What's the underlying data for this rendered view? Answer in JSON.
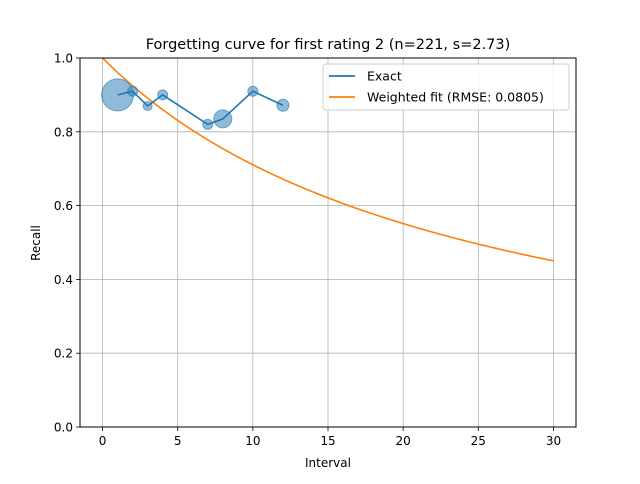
{
  "chart_data": {
    "type": "line",
    "title": "Forgetting curve for first rating 2 (n=221, s=2.73)",
    "xlabel": "Interval",
    "ylabel": "Recall",
    "xlim": [
      -1.5,
      31.5
    ],
    "ylim": [
      0,
      1.0
    ],
    "xticks": [
      0,
      5,
      10,
      15,
      20,
      25,
      30
    ],
    "yticks": [
      0.0,
      0.2,
      0.4,
      0.6,
      0.8,
      1.0
    ],
    "xtick_labels": [
      "0",
      "5",
      "10",
      "15",
      "20",
      "25",
      "30"
    ],
    "ytick_labels": [
      "0.0",
      "0.2",
      "0.4",
      "0.6",
      "0.8",
      "1.0"
    ],
    "grid": true,
    "legend_position": "top-right",
    "series": [
      {
        "name": "Exact",
        "color": "#1f77b4",
        "x": [
          1,
          2,
          3,
          4,
          7,
          8,
          10,
          12
        ],
        "y": [
          0.9,
          0.91,
          0.87,
          0.9,
          0.82,
          0.835,
          0.91,
          0.872
        ],
        "bubble_radius": [
          16,
          5,
          4.5,
          5,
          5,
          9,
          5,
          6
        ]
      },
      {
        "name": "Weighted fit (RMSE: 0.0805)",
        "color": "#ff7f0e",
        "curve": {
          "s": 2.73,
          "x_range": [
            0,
            30
          ]
        }
      }
    ]
  }
}
